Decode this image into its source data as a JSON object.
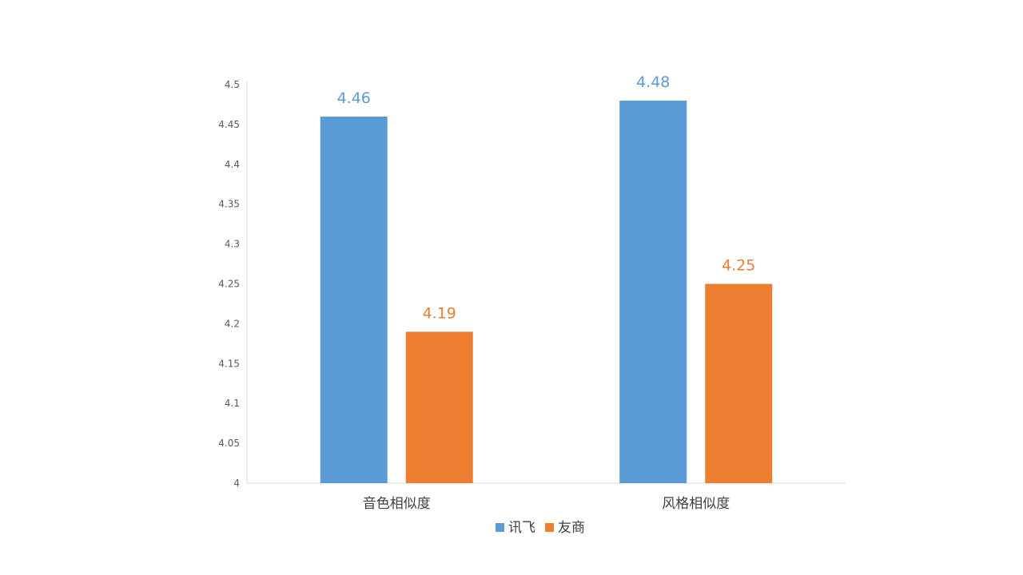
{
  "chart_data": {
    "type": "bar",
    "categories": [
      "音色相似度",
      "风格相似度"
    ],
    "series": [
      {
        "name": "讯飞",
        "values": [
          4.46,
          4.48
        ],
        "color": "#5B9BD5"
      },
      {
        "name": "友商",
        "values": [
          4.19,
          4.25
        ],
        "color": "#ED7D31"
      }
    ],
    "ylim": [
      4,
      4.5
    ],
    "yticks": [
      "4",
      "4.05",
      "4.1",
      "4.15",
      "4.2",
      "4.25",
      "4.3",
      "4.35",
      "4.4",
      "4.45",
      "4.5"
    ],
    "data_labels": [
      [
        "4.46",
        "4.48"
      ],
      [
        "4.19",
        "4.25"
      ]
    ],
    "grid": false,
    "legend_position": "bottom"
  }
}
